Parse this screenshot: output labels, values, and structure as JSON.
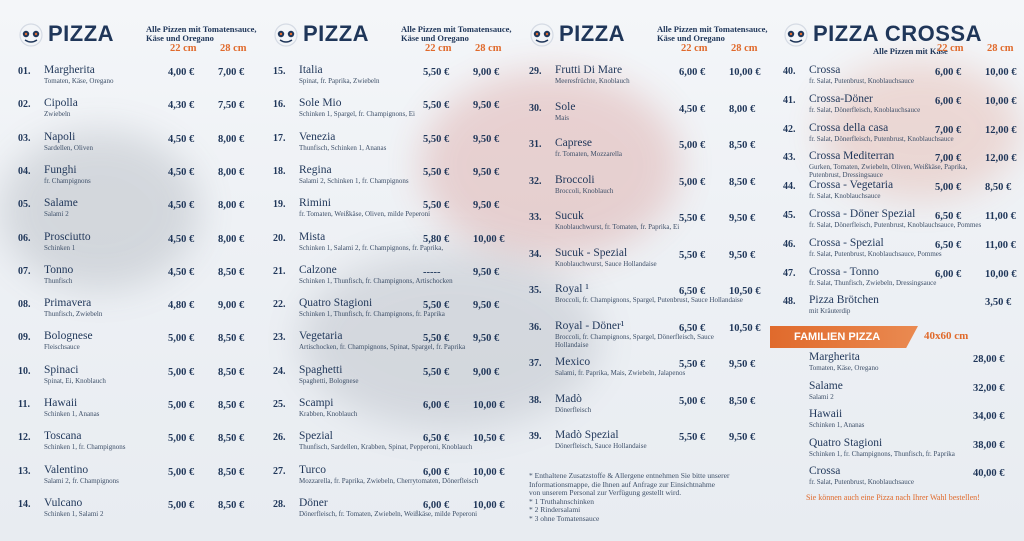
{
  "columns": [
    {
      "brand": "PIZZA",
      "note": "Alle Pizzen mit Tomatensauce, Käse und Oregano",
      "size_small": "22 cm",
      "size_large": "28 cm",
      "items": [
        {
          "num": "01.",
          "name": "Margherita",
          "desc": "Tomaten, Käse, Oregano",
          "p1": "4,00 €",
          "p2": "7,00 €"
        },
        {
          "num": "02.",
          "name": "Cipolla",
          "desc": "Zwiebeln",
          "p1": "4,30 €",
          "p2": "7,50 €"
        },
        {
          "num": "03.",
          "name": "Napoli",
          "desc": "Sardellen, Oliven",
          "p1": "4,50 €",
          "p2": "8,00 €"
        },
        {
          "num": "04.",
          "name": "Funghi",
          "desc": "fr. Champignons",
          "p1": "4,50 €",
          "p2": "8,00 €"
        },
        {
          "num": "05.",
          "name": "Salame",
          "desc": "Salami 2",
          "p1": "4,50 €",
          "p2": "8,00 €"
        },
        {
          "num": "06.",
          "name": "Prosciutto",
          "desc": "Schinken 1",
          "p1": "4,50 €",
          "p2": "8,00 €"
        },
        {
          "num": "07.",
          "name": "Tonno",
          "desc": "Thunfisch",
          "p1": "4,50 €",
          "p2": "8,50 €"
        },
        {
          "num": "08.",
          "name": "Primavera",
          "desc": "Thunfisch, Zwiebeln",
          "p1": "4,80 €",
          "p2": "9,00 €"
        },
        {
          "num": "09.",
          "name": "Bolognese",
          "desc": "Fleischsauce",
          "p1": "5,00 €",
          "p2": "8,50 €"
        },
        {
          "num": "10.",
          "name": "Spinaci",
          "desc": "Spinat, Ei, Knoblauch",
          "p1": "5,00 €",
          "p2": "8,50 €"
        },
        {
          "num": "11.",
          "name": "Hawaii",
          "desc": "Schinken 1, Ananas",
          "p1": "5,00 €",
          "p2": "8,50 €"
        },
        {
          "num": "12.",
          "name": "Toscana",
          "desc": "Schinken 1, fr. Champignons",
          "p1": "5,00 €",
          "p2": "8,50 €"
        },
        {
          "num": "13.",
          "name": "Valentino",
          "desc": "Salami 2, fr. Champignons",
          "p1": "5,00 €",
          "p2": "8,50 €"
        },
        {
          "num": "14.",
          "name": "Vulcano",
          "desc": "Schinken 1, Salami 2",
          "p1": "5,00 €",
          "p2": "8,50 €"
        }
      ]
    },
    {
      "brand": "PIZZA",
      "note": "Alle Pizzen mit Tomatensauce, Käse und Oregano",
      "size_small": "22 cm",
      "size_large": "28 cm",
      "items": [
        {
          "num": "15.",
          "name": "Italia",
          "desc": "Spinat, fr. Paprika, Zwiebeln",
          "p1": "5,50 €",
          "p2": "9,00 €"
        },
        {
          "num": "16.",
          "name": "Sole Mio",
          "desc": "Schinken 1, Spargel, fr. Champignons, Ei",
          "p1": "5,50 €",
          "p2": "9,50 €"
        },
        {
          "num": "17.",
          "name": "Venezia",
          "desc": "Thunfisch, Schinken 1, Ananas",
          "p1": "5,50 €",
          "p2": "9,50 €"
        },
        {
          "num": "18.",
          "name": "Regina",
          "desc": "Salami 2, Schinken 1, fr. Champignons",
          "p1": "5,50 €",
          "p2": "9,50 €"
        },
        {
          "num": "19.",
          "name": "Rimini",
          "desc": "fr. Tomaten, Weißkäse, Oliven, milde Peperoni",
          "p1": "5,50 €",
          "p2": "9,50 €"
        },
        {
          "num": "20.",
          "name": "Mista",
          "desc": "Schinken 1, Salami 2, fr. Champignons, fr. Paprika,",
          "p1": "5,80 €",
          "p2": "10,00 €"
        },
        {
          "num": "21.",
          "name": "Calzone",
          "desc": "Schinken 1, Thunfisch, fr. Champignons, Artischocken",
          "p1": "-----",
          "p2": "9,50 €"
        },
        {
          "num": "22.",
          "name": "Quatro Stagioni",
          "desc": "Schinken 1, Thunfisch, fr. Champignons, fr. Paprika",
          "p1": "5,50 €",
          "p2": "9,50 €"
        },
        {
          "num": "23.",
          "name": "Vegetaria",
          "desc": "Artischocken, fr. Champignons, Spinat, Spargel, fr. Paprika",
          "p1": "5,50 €",
          "p2": "9,50 €"
        },
        {
          "num": "24.",
          "name": "Spaghetti",
          "desc": "Spaghetti, Bolognese",
          "p1": "5,50 €",
          "p2": "9,00 €"
        },
        {
          "num": "25.",
          "name": "Scampi",
          "desc": "Krabben, Knoblauch",
          "p1": "6,00 €",
          "p2": "10,00 €"
        },
        {
          "num": "26.",
          "name": "Spezial",
          "desc": "Thunfisch, Sardellen, Krabben, Spinat, Pepperoni, Knoblauch",
          "p1": "6,50 €",
          "p2": "10,50 €"
        },
        {
          "num": "27.",
          "name": "Turco",
          "desc": "Mozzarella, fr. Paprika, Zwiebeln, Cherrytomaten, Dönerfleisch",
          "p1": "6,00 €",
          "p2": "10,00 €"
        },
        {
          "num": "28.",
          "name": "Döner",
          "desc": "Dönerfleisch, fr. Tomaten, Zwiebeln, Weißkäse, milde Peperoni",
          "p1": "6,00 €",
          "p2": "10,00 €"
        }
      ]
    },
    {
      "brand": "PIZZA",
      "note": "Alle Pizzen mit Tomatensauce, Käse und Oregano",
      "size_small": "22 cm",
      "size_large": "28 cm",
      "items": [
        {
          "num": "29.",
          "name": "Frutti Di Mare",
          "desc": "Meeresfrüchte, Knoblauch",
          "p1": "6,00 €",
          "p2": "10,00 €"
        },
        {
          "num": "30.",
          "name": "Sole",
          "desc": "Mais",
          "p1": "4,50 €",
          "p2": "8,00 €"
        },
        {
          "num": "31.",
          "name": "Caprese",
          "desc": "fr. Tomaten, Mozzarella",
          "p1": "5,00 €",
          "p2": "8,50 €"
        },
        {
          "num": "32.",
          "name": "Broccoli",
          "desc": "Broccoli, Knoblauch",
          "p1": "5,00 €",
          "p2": "8,50 €"
        },
        {
          "num": "33.",
          "name": "Sucuk",
          "desc": "Knoblauchwurst, fr. Tomaten, fr. Paprika, Ei",
          "p1": "5,50 €",
          "p2": "9,50 €"
        },
        {
          "num": "34.",
          "name": "Sucuk - Spezial",
          "desc": "Knoblauchwurst, Sauce Hollandaise",
          "p1": "5,50 €",
          "p2": "9,50 €"
        },
        {
          "num": "35.",
          "name": "Royal ¹",
          "desc": "Broccoli, fr. Champignons, Spargel, Putenbrust, Sauce Hollandaise",
          "p1": "6,50 €",
          "p2": "10,50 €"
        },
        {
          "num": "36.",
          "name": "Royal - Döner¹",
          "desc": "Broccoli, fr. Champignons, Spargel, Dönerfleisch, Sauce Hollandaise",
          "p1": "6,50 €",
          "p2": "10,50 €"
        },
        {
          "num": "37.",
          "name": "Mexico",
          "desc": "Salami, fr. Paprika, Mais, Zwiebeln, Jalapenos",
          "p1": "5,50 €",
          "p2": "9,50 €"
        },
        {
          "num": "38.",
          "name": "Madò",
          "desc": "Dönerfleisch",
          "p1": "5,00 €",
          "p2": "8,50 €"
        },
        {
          "num": "39.",
          "name": "Madò Spezial",
          "desc": "Dönerfleisch, Sauce Hollandaise",
          "p1": "5,50 €",
          "p2": "9,50 €"
        }
      ],
      "footnotes": [
        "* Enthaltene Zusatzstoffe & Allergene entnehmen Sie bitte unserer",
        "Informationsmappe, die Ihnen auf Anfrage zur Einsichtnahme",
        "von unserem Personal zur Verfügung gestellt wird.",
        "* 1 Truthahnschinken",
        "* 2 Rindersalami",
        "* 3 ohne Tomatensauce"
      ]
    },
    {
      "brand": "PIZZA CROSSA",
      "note": "Alle Pizzen mit Käse",
      "size_small": "22 cm",
      "size_large": "28 cm",
      "items": [
        {
          "num": "40.",
          "name": "Crossa",
          "desc": "fr. Salat, Putenbrust, Knoblauchsauce",
          "p1": "6,00 €",
          "p2": "10,00 €"
        },
        {
          "num": "41.",
          "name": "Crossa-Döner",
          "desc": "fr. Salat, Dönerfleisch, Knoblauchsauce",
          "p1": "6,00 €",
          "p2": "10,00 €"
        },
        {
          "num": "42.",
          "name": "Crossa della casa",
          "desc": "fr. Salat, Dönerfleisch, Putenbrust, Knoblauchsauce",
          "p1": "7,00 €",
          "p2": "12,00 €"
        },
        {
          "num": "43.",
          "name": "Crossa Mediterran",
          "desc": "Gurken, Tomaten, Zwiebeln, Oliven, Weißkäse, Paprika, Putenbrust, Dressingsauce",
          "p1": "7,00 €",
          "p2": "12,00 €"
        },
        {
          "num": "44.",
          "name": "Crossa - Vegetaria",
          "desc": "fr. Salat, Knoblauchsauce",
          "p1": "5,00 €",
          "p2": "8,50 €"
        },
        {
          "num": "45.",
          "name": "Crossa - Döner Spezial",
          "desc": "fr. Salat, Dönerfleisch, Putenbrust, Knoblauchsauce, Pommes",
          "p1": "6,50 €",
          "p2": "11,00 €"
        },
        {
          "num": "46.",
          "name": "Crossa - Spezial",
          "desc": "fr. Salat, Putenbrust, Knoblauchsauce, Pommes",
          "p1": "6,50 €",
          "p2": "11,00 €"
        },
        {
          "num": "47.",
          "name": "Crossa - Tonno",
          "desc": "fr. Salat, Thunfisch, Zwiebeln, Dressingsauce",
          "p1": "6,00 €",
          "p2": "10,00 €"
        },
        {
          "num": "48.",
          "name": "Pizza Brötchen",
          "desc": "mit Kräuterdip",
          "p1": "",
          "p2": "3,50 €"
        }
      ],
      "familien": {
        "title": "FAMILIEN PIZZA",
        "size": "40x60 cm",
        "items": [
          {
            "name": "Margherita",
            "desc": "Tomaten, Käse, Oregano",
            "price": "28,00 €"
          },
          {
            "name": "Salame",
            "desc": "Salami 2",
            "price": "32,00 €"
          },
          {
            "name": "Hawaii",
            "desc": "Schinken 1, Ananas",
            "price": "34,00 €"
          },
          {
            "name": "Quatro Stagioni",
            "desc": "Schinken 1, fr. Champignons, Thunfisch, fr. Paprika",
            "price": "38,00 €"
          },
          {
            "name": "Crossa",
            "desc": "fr. Salat, Putenbrust, Knoblauchsauce",
            "price": "40,00 €"
          }
        ],
        "note": "Sie können auch eine Pizza nach Ihrer Wahl bestellen!"
      }
    }
  ]
}
